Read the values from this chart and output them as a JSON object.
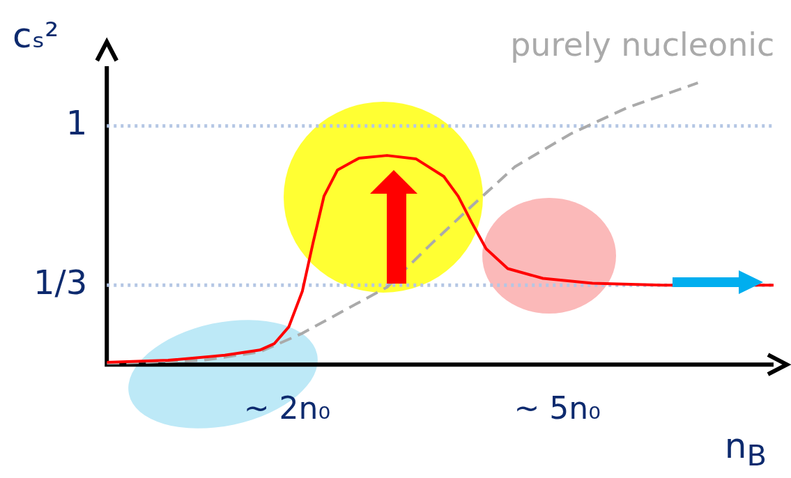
{
  "chart_data": {
    "type": "line",
    "ylabel": "cₛ²",
    "xlabel": "n$_{B}$",
    "xlim": [
      0,
      7.4
    ],
    "ylim": [
      0,
      1.25
    ],
    "xticks": [
      {
        "value": 2,
        "label": "~ 2n₀"
      },
      {
        "value": 5,
        "label": "~ 5n₀"
      }
    ],
    "yticks": [
      {
        "value": 0.333,
        "label": "1/3"
      },
      1
    ],
    "grid": false,
    "legend": false,
    "marker": "none",
    "ref_lines": [
      {
        "axis": "y",
        "value": 1,
        "color": "#b4c6e4",
        "line_style": "dotted"
      },
      {
        "axis": "y",
        "value": 0.333,
        "color": "#b4c6e4",
        "line_style": "dotted"
      }
    ],
    "series": [
      {
        "color": "#ff0000",
        "line_style": "solid",
        "x": [
          0,
          0.68,
          1.31,
          1.7,
          1.86,
          2.02,
          2.17,
          2.29,
          2.41,
          2.56,
          2.8,
          3.11,
          3.43,
          3.74,
          3.9,
          4.05,
          4.21,
          4.45,
          4.84,
          5.39,
          6.17,
          7.4
        ],
        "values": [
          0.009,
          0.018,
          0.039,
          0.061,
          0.088,
          0.158,
          0.307,
          0.512,
          0.705,
          0.815,
          0.865,
          0.876,
          0.862,
          0.788,
          0.705,
          0.595,
          0.485,
          0.402,
          0.361,
          0.341,
          0.333,
          0.333
        ]
      },
      {
        "name": "purely nucleonic",
        "color": "#aaaaaa",
        "line_style": "dashed",
        "x": [
          0,
          1.07,
          1.7,
          2.17,
          2.64,
          3.11,
          3.58,
          4.05,
          4.53,
          5.15,
          5.78,
          6.56
        ],
        "values": [
          0.004,
          0.018,
          0.053,
          0.131,
          0.228,
          0.324,
          0.498,
          0.664,
          0.829,
          0.967,
          1.077,
          1.18
        ]
      }
    ]
  }
}
